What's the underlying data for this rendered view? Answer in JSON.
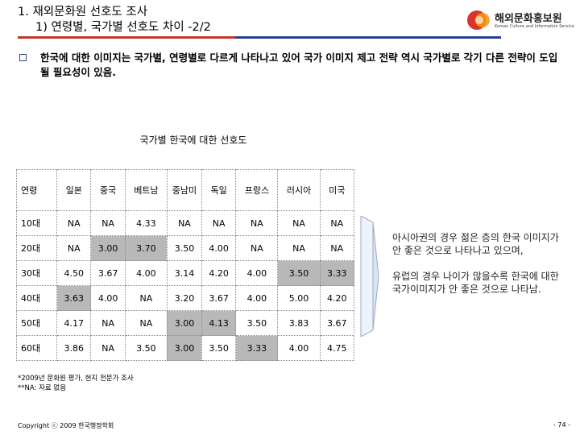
{
  "header": {
    "title_line1": "1. 재외문화원 선호도 조사",
    "title_line2": "1) 연령별, 국가별 선호도 차이 -2/2"
  },
  "logo": {
    "name": "해외문화홍보원",
    "subtitle": "Korean Culture and Information Service"
  },
  "summary": "한국에 대한 이미지는 국가별, 연령별로 다르게 나타나고 있어 국가 이미지 제고 전략 역시 국가별로 각기 다른 전략이 도입될 필요성이 있음.",
  "table": {
    "caption": "국가별 한국에 대한 선호도",
    "headers": [
      "연령",
      "일본",
      "중국",
      "베트남",
      "중남미",
      "독일",
      "프랑스",
      "러시아",
      "미국"
    ],
    "rows": [
      [
        "10대",
        "NA",
        "NA",
        "4.33",
        "NA",
        "NA",
        "NA",
        "NA",
        "NA"
      ],
      [
        "20대",
        "NA",
        "3.00",
        "3.70",
        "3.50",
        "4.00",
        "NA",
        "NA",
        "NA"
      ],
      [
        "30대",
        "4.50",
        "3.67",
        "4.00",
        "3.14",
        "4.20",
        "4.00",
        "3.50",
        "3.33"
      ],
      [
        "40대",
        "3.63",
        "4.00",
        "NA",
        "3.20",
        "3.67",
        "4.00",
        "5.00",
        "4.20"
      ],
      [
        "50대",
        "4.17",
        "NA",
        "NA",
        "3.00",
        "4.13",
        "3.50",
        "3.83",
        "3.67"
      ],
      [
        "60대",
        "3.86",
        "NA",
        "3.50",
        "3.00",
        "3.50",
        "3.33",
        "4.00",
        "4.75"
      ]
    ],
    "highlighted": [
      [
        1,
        2
      ],
      [
        1,
        3
      ],
      [
        2,
        7
      ],
      [
        2,
        8
      ],
      [
        3,
        1
      ],
      [
        4,
        4
      ],
      [
        4,
        5
      ],
      [
        5,
        4
      ],
      [
        5,
        6
      ]
    ]
  },
  "notes": {
    "source": "*2009년 문화원 평가, 현지 전문가 조사",
    "na": "**NA: 자료 없음"
  },
  "comments": [
    "아시아권의 경우 젊은 층의 한국 이미지가 안 좋은 것으로 나타나고 있으며,",
    "유럽의 경우 나이가 많을수록 한국에 대한 국가이미지가 안 좋은 것으로 나타남."
  ],
  "footer": {
    "copyright": "Copyright ⓒ 2009 한국행정학회",
    "page": "- 74 -"
  },
  "colors": {
    "title_rule_red": "#c0392b",
    "title_rule_blue": "#2a3f8f",
    "highlight": "#b8b8b8",
    "logo_red": "#d9342b",
    "logo_orange": "#f39c12"
  }
}
